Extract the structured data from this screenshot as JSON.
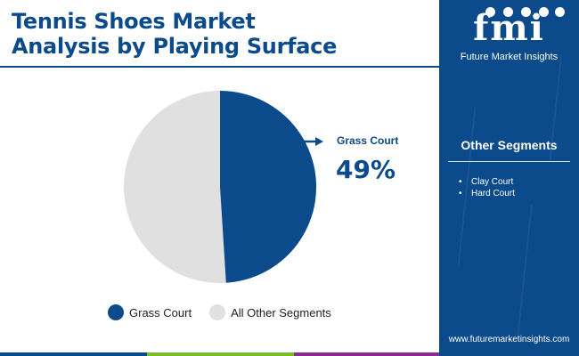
{
  "header": {
    "title_line1": "Tennis Shoes Market",
    "title_line2": "Analysis by Playing Surface"
  },
  "brand": {
    "logo_text": "fmi",
    "logo_subtitle": "Future Market Insights",
    "url": "www.futuremarketinsights.com"
  },
  "side_panel": {
    "title": "Other Segments",
    "items": [
      "Clay Court",
      "Hard Court"
    ]
  },
  "colors": {
    "primary": "#0b4a8b",
    "other": "#e0e0e0",
    "bar": [
      "#0b4a8b",
      "#7dbb2c",
      "#8a2d8f",
      "#0b4a8b"
    ]
  },
  "chart_data": {
    "type": "pie",
    "title": "Tennis Shoes Market Analysis by Playing Surface",
    "slices": [
      {
        "label": "Grass Court",
        "value": 49,
        "color": "#0b4a8b"
      },
      {
        "label": "All Other Segments",
        "value": 51,
        "color": "#e0e0e0"
      }
    ],
    "callout": {
      "label": "Grass Court",
      "value_text": "49%"
    },
    "legend": [
      "Grass Court",
      "All Other Segments"
    ],
    "legend_position": "bottom"
  }
}
